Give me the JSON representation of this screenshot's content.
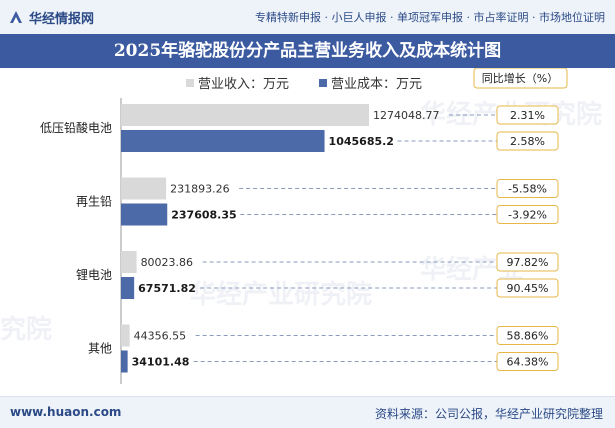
{
  "header": {
    "brand": "华经情报网",
    "services": "专精特新申报 · 小巨人申报 · 单项冠军申报 · 市占率证明 · 市场地位证明"
  },
  "title": "2025年骆驼股份分产品主营业务收入及成本统计图",
  "legend": {
    "revenue_label": "营业收入：万元",
    "cost_label": "营业成本：万元",
    "growth_label": "同比增长（%）"
  },
  "colors": {
    "revenue": "#d9d9d9",
    "cost": "#4d6aa8",
    "title_bg": "#3b5aa0",
    "badge_border": "#e6b84a"
  },
  "footer": {
    "site": "www.huaon.com",
    "source": "资料来源：公司公报，华经产业研究院整理"
  },
  "chart_data": {
    "type": "bar",
    "orientation": "horizontal",
    "title": "2025年骆驼股份分产品主营业务收入及成本统计图",
    "categories": [
      "低压铅酸电池",
      "再生铅",
      "锂电池",
      "其他"
    ],
    "series": [
      {
        "name": "营业收入：万元",
        "values": [
          1274048.77,
          231893.26,
          80023.86,
          44356.55
        ],
        "labels": [
          "1274048.77",
          "231893.26",
          "80023.86",
          "44356.55"
        ],
        "growth": [
          "2.31%",
          "-5.58%",
          "97.82%",
          "58.86%"
        ]
      },
      {
        "name": "营业成本：万元",
        "values": [
          1045685.2,
          237608.35,
          67571.82,
          34101.48
        ],
        "labels": [
          "1045685.2",
          "237608.35",
          "67571.82",
          "34101.48"
        ],
        "growth": [
          "2.58%",
          "-3.92%",
          "90.45%",
          "64.38%"
        ]
      }
    ],
    "xlim": [
      0,
      1274048.77
    ],
    "grid": false,
    "legend_position": "top"
  }
}
